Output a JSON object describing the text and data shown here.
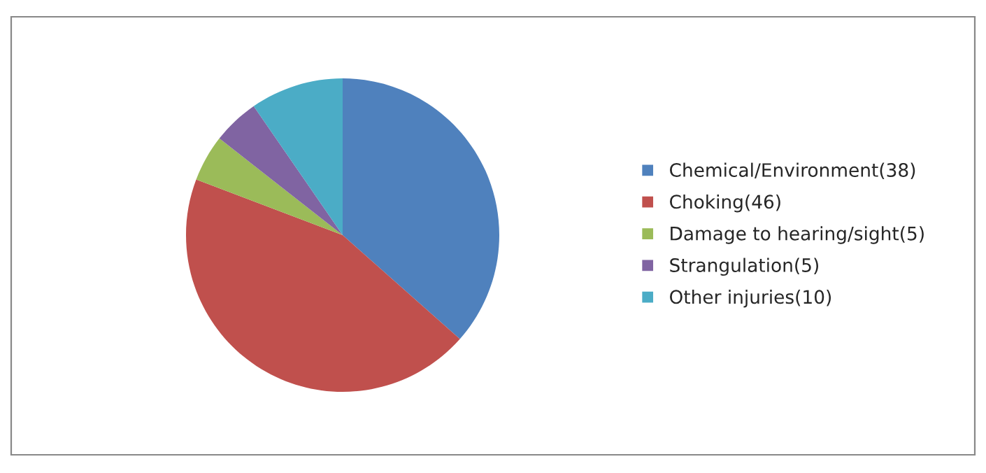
{
  "chart_data": {
    "type": "pie",
    "categories": [
      "Chemical/Environment(38)",
      "Choking(46)",
      "Damage to hearing/sight(5)",
      "Strangulation(5)",
      "Other injuries(10)"
    ],
    "values": [
      38,
      46,
      5,
      5,
      10
    ],
    "colors": [
      "#4f81bd",
      "#c0504d",
      "#9bbb59",
      "#8064a2",
      "#4bacc6"
    ],
    "legend": "right"
  }
}
